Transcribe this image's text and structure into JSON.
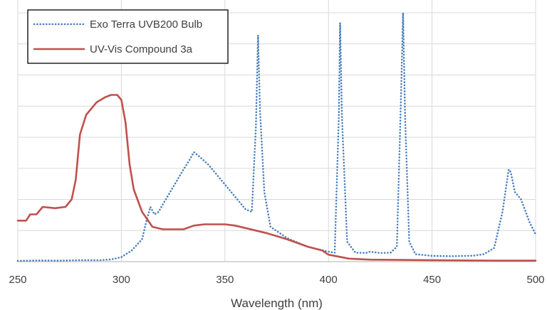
{
  "chart_data": {
    "type": "line",
    "title": "",
    "xlabel": "Wavelength (nm)",
    "ylabel": "",
    "xlim": [
      250,
      500
    ],
    "ylim": [
      0,
      1
    ],
    "x_ticks": [
      250,
      300,
      350,
      400,
      450,
      500
    ],
    "x_tick_labels": [
      "250",
      "300",
      "350",
      "400",
      "450",
      "500"
    ],
    "y_gridlines": [
      0.125,
      0.25,
      0.375,
      0.5,
      0.625,
      0.75,
      0.875,
      1.0
    ],
    "grid": true,
    "legend_position": "top-left",
    "series": [
      {
        "name": "Exo Terra UVB200 Bulb",
        "color": "#4a7ebb",
        "style": "dotted",
        "points": [
          [
            250,
            0.003
          ],
          [
            260,
            0.005
          ],
          [
            270,
            0.004
          ],
          [
            280,
            0.006
          ],
          [
            290,
            0.006
          ],
          [
            295,
            0.009
          ],
          [
            300,
            0.018
          ],
          [
            305,
            0.045
          ],
          [
            310,
            0.09
          ],
          [
            312,
            0.16
          ],
          [
            314,
            0.22
          ],
          [
            316,
            0.19
          ],
          [
            318,
            0.2
          ],
          [
            320,
            0.23
          ],
          [
            325,
            0.3
          ],
          [
            330,
            0.37
          ],
          [
            333,
            0.41
          ],
          [
            335,
            0.44
          ],
          [
            338,
            0.42
          ],
          [
            342,
            0.39
          ],
          [
            345,
            0.36
          ],
          [
            350,
            0.31
          ],
          [
            355,
            0.26
          ],
          [
            360,
            0.21
          ],
          [
            363,
            0.2
          ],
          [
            365,
            0.55
          ],
          [
            366,
            0.91
          ],
          [
            367,
            0.6
          ],
          [
            369,
            0.28
          ],
          [
            372,
            0.14
          ],
          [
            380,
            0.095
          ],
          [
            390,
            0.06
          ],
          [
            400,
            0.04
          ],
          [
            403,
            0.036
          ],
          [
            405,
            0.58
          ],
          [
            405.6,
            0.96
          ],
          [
            406.5,
            0.58
          ],
          [
            409,
            0.08
          ],
          [
            413,
            0.036
          ],
          [
            418,
            0.035
          ],
          [
            420,
            0.04
          ],
          [
            425,
            0.035
          ],
          [
            430,
            0.036
          ],
          [
            433,
            0.06
          ],
          [
            435,
            0.66
          ],
          [
            436,
            1.0
          ],
          [
            437,
            0.58
          ],
          [
            439,
            0.08
          ],
          [
            442,
            0.03
          ],
          [
            450,
            0.023
          ],
          [
            460,
            0.022
          ],
          [
            470,
            0.024
          ],
          [
            475,
            0.03
          ],
          [
            480,
            0.055
          ],
          [
            484,
            0.2
          ],
          [
            487,
            0.37
          ],
          [
            488,
            0.36
          ],
          [
            490,
            0.28
          ],
          [
            493,
            0.25
          ],
          [
            497,
            0.16
          ],
          [
            500,
            0.11
          ]
        ]
      },
      {
        "name": "UV-Vis Compound 3a",
        "color": "#c0504d",
        "style": "solid",
        "points": [
          [
            250,
            0.165
          ],
          [
            254,
            0.165
          ],
          [
            256,
            0.19
          ],
          [
            259,
            0.19
          ],
          [
            262,
            0.22
          ],
          [
            268,
            0.215
          ],
          [
            273,
            0.22
          ],
          [
            276,
            0.25
          ],
          [
            278,
            0.33
          ],
          [
            280,
            0.51
          ],
          [
            283,
            0.59
          ],
          [
            285,
            0.61
          ],
          [
            288,
            0.64
          ],
          [
            292,
            0.66
          ],
          [
            295,
            0.67
          ],
          [
            298,
            0.67
          ],
          [
            300,
            0.65
          ],
          [
            302,
            0.56
          ],
          [
            304,
            0.39
          ],
          [
            306,
            0.29
          ],
          [
            310,
            0.2
          ],
          [
            315,
            0.14
          ],
          [
            320,
            0.13
          ],
          [
            330,
            0.13
          ],
          [
            335,
            0.145
          ],
          [
            340,
            0.15
          ],
          [
            350,
            0.15
          ],
          [
            355,
            0.145
          ],
          [
            360,
            0.135
          ],
          [
            370,
            0.115
          ],
          [
            380,
            0.09
          ],
          [
            390,
            0.06
          ],
          [
            397,
            0.045
          ],
          [
            400,
            0.028
          ],
          [
            410,
            0.012
          ],
          [
            420,
            0.008
          ],
          [
            450,
            0.006
          ],
          [
            480,
            0.004
          ],
          [
            500,
            0.004
          ]
        ]
      }
    ]
  }
}
